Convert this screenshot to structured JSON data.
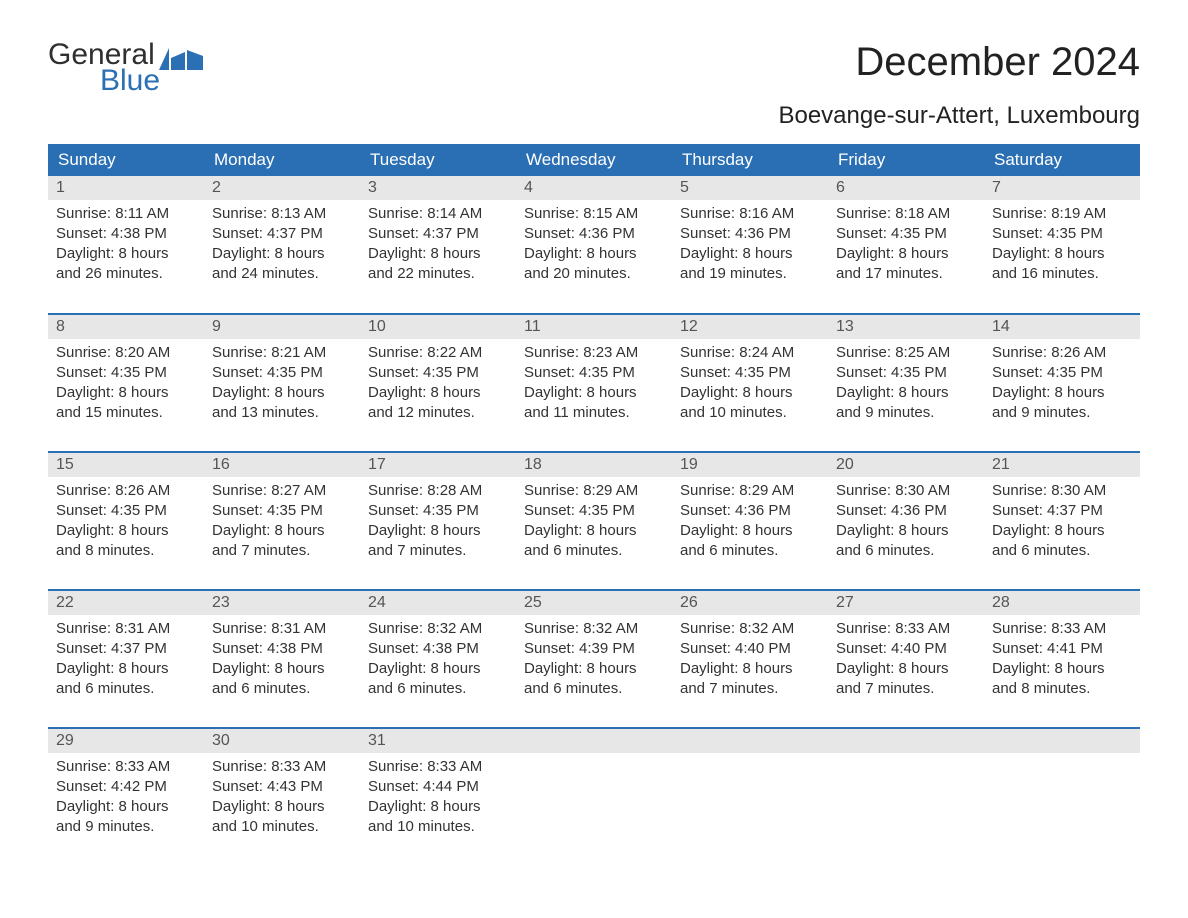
{
  "brand": {
    "word1": "General",
    "word2": "Blue",
    "color_dark": "#2f2f2f",
    "color_blue": "#2b6fb5"
  },
  "title": "December 2024",
  "subtitle": "Boevange-sur-Attert, Luxembourg",
  "colors": {
    "header_bg": "#2a6fb4",
    "header_text": "#ffffff",
    "daynum_bg": "#e7e7e7",
    "daynum_text": "#555555",
    "body_text": "#333333",
    "row_divider": "#2a6fb4",
    "page_bg": "#ffffff"
  },
  "fonts": {
    "title_size_pt": 30,
    "subtitle_size_pt": 18,
    "header_size_pt": 13,
    "body_size_pt": 11
  },
  "day_headers": [
    "Sunday",
    "Monday",
    "Tuesday",
    "Wednesday",
    "Thursday",
    "Friday",
    "Saturday"
  ],
  "weeks": [
    [
      {
        "n": "1",
        "sunrise": "Sunrise: 8:11 AM",
        "sunset": "Sunset: 4:38 PM",
        "d1": "Daylight: 8 hours",
        "d2": "and 26 minutes."
      },
      {
        "n": "2",
        "sunrise": "Sunrise: 8:13 AM",
        "sunset": "Sunset: 4:37 PM",
        "d1": "Daylight: 8 hours",
        "d2": "and 24 minutes."
      },
      {
        "n": "3",
        "sunrise": "Sunrise: 8:14 AM",
        "sunset": "Sunset: 4:37 PM",
        "d1": "Daylight: 8 hours",
        "d2": "and 22 minutes."
      },
      {
        "n": "4",
        "sunrise": "Sunrise: 8:15 AM",
        "sunset": "Sunset: 4:36 PM",
        "d1": "Daylight: 8 hours",
        "d2": "and 20 minutes."
      },
      {
        "n": "5",
        "sunrise": "Sunrise: 8:16 AM",
        "sunset": "Sunset: 4:36 PM",
        "d1": "Daylight: 8 hours",
        "d2": "and 19 minutes."
      },
      {
        "n": "6",
        "sunrise": "Sunrise: 8:18 AM",
        "sunset": "Sunset: 4:35 PM",
        "d1": "Daylight: 8 hours",
        "d2": "and 17 minutes."
      },
      {
        "n": "7",
        "sunrise": "Sunrise: 8:19 AM",
        "sunset": "Sunset: 4:35 PM",
        "d1": "Daylight: 8 hours",
        "d2": "and 16 minutes."
      }
    ],
    [
      {
        "n": "8",
        "sunrise": "Sunrise: 8:20 AM",
        "sunset": "Sunset: 4:35 PM",
        "d1": "Daylight: 8 hours",
        "d2": "and 15 minutes."
      },
      {
        "n": "9",
        "sunrise": "Sunrise: 8:21 AM",
        "sunset": "Sunset: 4:35 PM",
        "d1": "Daylight: 8 hours",
        "d2": "and 13 minutes."
      },
      {
        "n": "10",
        "sunrise": "Sunrise: 8:22 AM",
        "sunset": "Sunset: 4:35 PM",
        "d1": "Daylight: 8 hours",
        "d2": "and 12 minutes."
      },
      {
        "n": "11",
        "sunrise": "Sunrise: 8:23 AM",
        "sunset": "Sunset: 4:35 PM",
        "d1": "Daylight: 8 hours",
        "d2": "and 11 minutes."
      },
      {
        "n": "12",
        "sunrise": "Sunrise: 8:24 AM",
        "sunset": "Sunset: 4:35 PM",
        "d1": "Daylight: 8 hours",
        "d2": "and 10 minutes."
      },
      {
        "n": "13",
        "sunrise": "Sunrise: 8:25 AM",
        "sunset": "Sunset: 4:35 PM",
        "d1": "Daylight: 8 hours",
        "d2": "and 9 minutes."
      },
      {
        "n": "14",
        "sunrise": "Sunrise: 8:26 AM",
        "sunset": "Sunset: 4:35 PM",
        "d1": "Daylight: 8 hours",
        "d2": "and 9 minutes."
      }
    ],
    [
      {
        "n": "15",
        "sunrise": "Sunrise: 8:26 AM",
        "sunset": "Sunset: 4:35 PM",
        "d1": "Daylight: 8 hours",
        "d2": "and 8 minutes."
      },
      {
        "n": "16",
        "sunrise": "Sunrise: 8:27 AM",
        "sunset": "Sunset: 4:35 PM",
        "d1": "Daylight: 8 hours",
        "d2": "and 7 minutes."
      },
      {
        "n": "17",
        "sunrise": "Sunrise: 8:28 AM",
        "sunset": "Sunset: 4:35 PM",
        "d1": "Daylight: 8 hours",
        "d2": "and 7 minutes."
      },
      {
        "n": "18",
        "sunrise": "Sunrise: 8:29 AM",
        "sunset": "Sunset: 4:35 PM",
        "d1": "Daylight: 8 hours",
        "d2": "and 6 minutes."
      },
      {
        "n": "19",
        "sunrise": "Sunrise: 8:29 AM",
        "sunset": "Sunset: 4:36 PM",
        "d1": "Daylight: 8 hours",
        "d2": "and 6 minutes."
      },
      {
        "n": "20",
        "sunrise": "Sunrise: 8:30 AM",
        "sunset": "Sunset: 4:36 PM",
        "d1": "Daylight: 8 hours",
        "d2": "and 6 minutes."
      },
      {
        "n": "21",
        "sunrise": "Sunrise: 8:30 AM",
        "sunset": "Sunset: 4:37 PM",
        "d1": "Daylight: 8 hours",
        "d2": "and 6 minutes."
      }
    ],
    [
      {
        "n": "22",
        "sunrise": "Sunrise: 8:31 AM",
        "sunset": "Sunset: 4:37 PM",
        "d1": "Daylight: 8 hours",
        "d2": "and 6 minutes."
      },
      {
        "n": "23",
        "sunrise": "Sunrise: 8:31 AM",
        "sunset": "Sunset: 4:38 PM",
        "d1": "Daylight: 8 hours",
        "d2": "and 6 minutes."
      },
      {
        "n": "24",
        "sunrise": "Sunrise: 8:32 AM",
        "sunset": "Sunset: 4:38 PM",
        "d1": "Daylight: 8 hours",
        "d2": "and 6 minutes."
      },
      {
        "n": "25",
        "sunrise": "Sunrise: 8:32 AM",
        "sunset": "Sunset: 4:39 PM",
        "d1": "Daylight: 8 hours",
        "d2": "and 6 minutes."
      },
      {
        "n": "26",
        "sunrise": "Sunrise: 8:32 AM",
        "sunset": "Sunset: 4:40 PM",
        "d1": "Daylight: 8 hours",
        "d2": "and 7 minutes."
      },
      {
        "n": "27",
        "sunrise": "Sunrise: 8:33 AM",
        "sunset": "Sunset: 4:40 PM",
        "d1": "Daylight: 8 hours",
        "d2": "and 7 minutes."
      },
      {
        "n": "28",
        "sunrise": "Sunrise: 8:33 AM",
        "sunset": "Sunset: 4:41 PM",
        "d1": "Daylight: 8 hours",
        "d2": "and 8 minutes."
      }
    ],
    [
      {
        "n": "29",
        "sunrise": "Sunrise: 8:33 AM",
        "sunset": "Sunset: 4:42 PM",
        "d1": "Daylight: 8 hours",
        "d2": "and 9 minutes."
      },
      {
        "n": "30",
        "sunrise": "Sunrise: 8:33 AM",
        "sunset": "Sunset: 4:43 PM",
        "d1": "Daylight: 8 hours",
        "d2": "and 10 minutes."
      },
      {
        "n": "31",
        "sunrise": "Sunrise: 8:33 AM",
        "sunset": "Sunset: 4:44 PM",
        "d1": "Daylight: 8 hours",
        "d2": "and 10 minutes."
      },
      null,
      null,
      null,
      null
    ]
  ]
}
